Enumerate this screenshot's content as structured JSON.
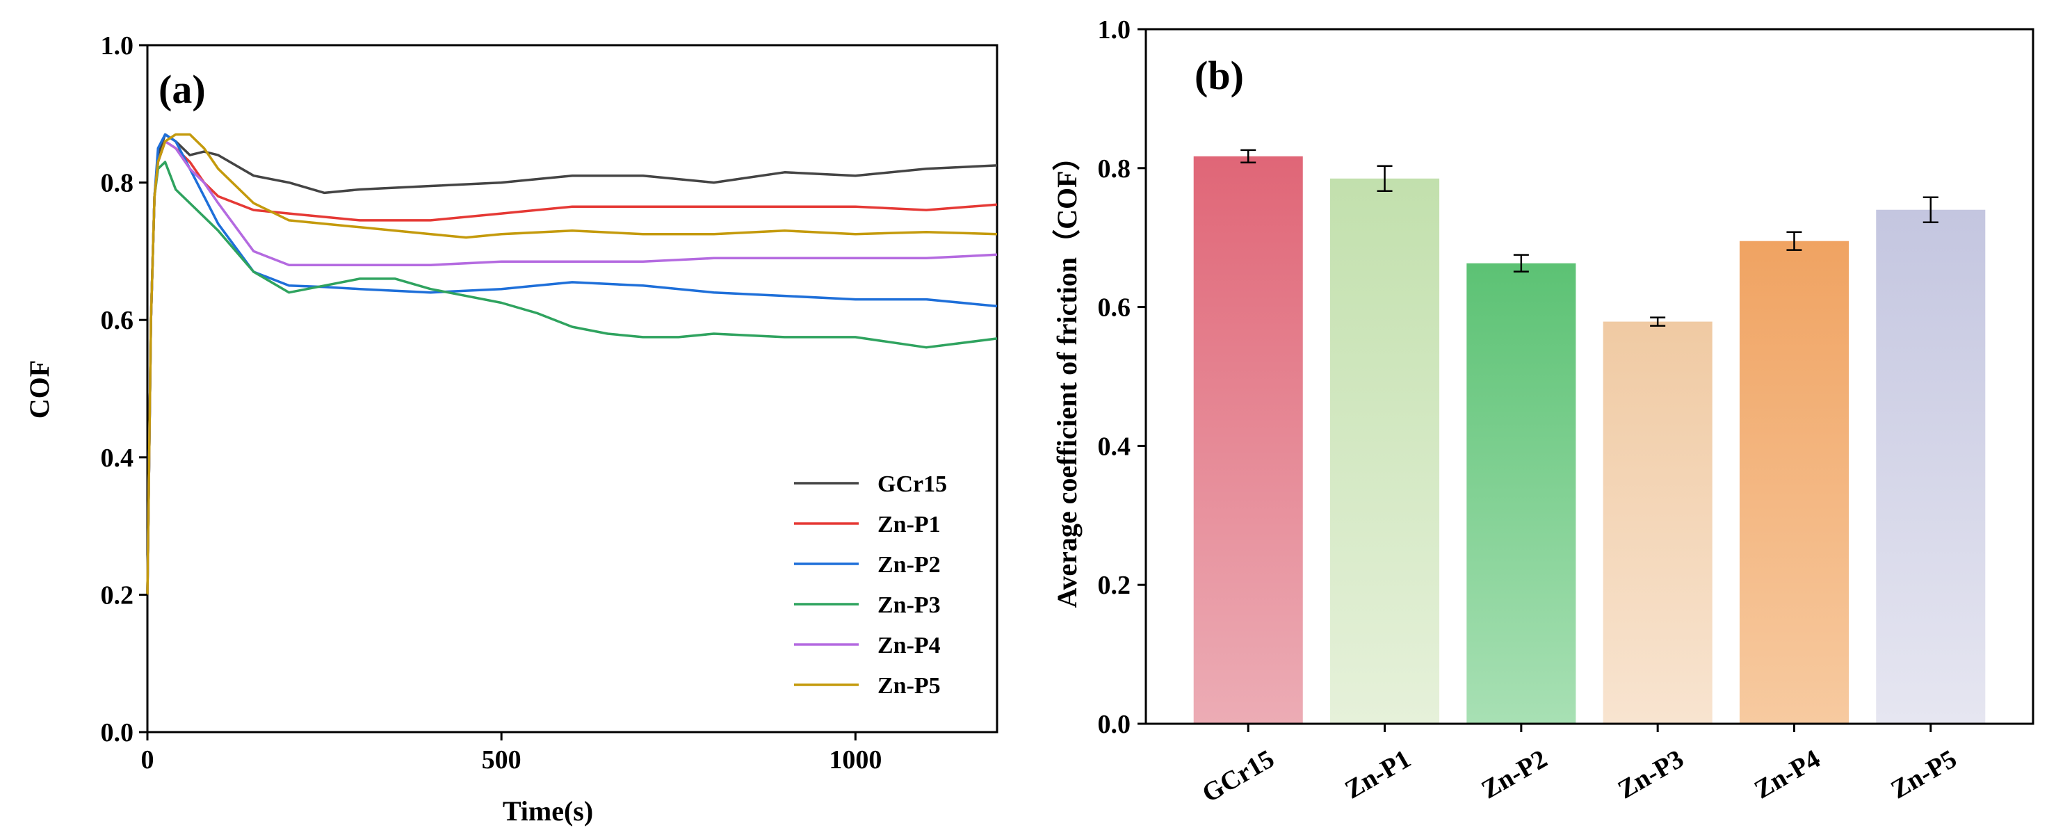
{
  "chart_data": [
    {
      "type": "line",
      "panel_label": "(a)",
      "xlabel": "Time(s)",
      "ylabel": "COF",
      "xlim": [
        0,
        1200
      ],
      "ylim": [
        0,
        1.0
      ],
      "xticks": [
        0,
        500,
        1000
      ],
      "xtick_labels": [
        "0",
        "500",
        "1000"
      ],
      "yticks": [
        0,
        0.2,
        0.4,
        0.6,
        0.8,
        1.0
      ],
      "ytick_labels": [
        "0.0",
        "0.2",
        "0.4",
        "0.6",
        "0.8",
        "1.0"
      ],
      "legend_position": "bottom-right",
      "series": [
        {
          "name": "GCr15",
          "color": "#444444",
          "x": [
            0,
            5,
            10,
            15,
            25,
            40,
            60,
            80,
            100,
            150,
            200,
            250,
            300,
            400,
            500,
            600,
            700,
            800,
            900,
            1000,
            1100,
            1200
          ],
          "y": [
            0.2,
            0.6,
            0.78,
            0.84,
            0.87,
            0.86,
            0.84,
            0.845,
            0.84,
            0.81,
            0.8,
            0.785,
            0.79,
            0.795,
            0.8,
            0.81,
            0.81,
            0.8,
            0.815,
            0.81,
            0.82,
            0.825
          ]
        },
        {
          "name": "Zn-P1",
          "color": "#e53935",
          "x": [
            0,
            5,
            10,
            15,
            25,
            40,
            60,
            80,
            100,
            150,
            200,
            250,
            300,
            400,
            500,
            600,
            700,
            800,
            900,
            1000,
            1100,
            1200
          ],
          "y": [
            0.2,
            0.6,
            0.78,
            0.83,
            0.86,
            0.85,
            0.83,
            0.8,
            0.78,
            0.76,
            0.755,
            0.75,
            0.745,
            0.745,
            0.755,
            0.765,
            0.765,
            0.765,
            0.765,
            0.765,
            0.76,
            0.768
          ]
        },
        {
          "name": "Zn-P2",
          "color": "#1e6fd9",
          "x": [
            0,
            5,
            10,
            15,
            25,
            40,
            60,
            80,
            100,
            150,
            200,
            250,
            300,
            400,
            500,
            600,
            700,
            800,
            900,
            1000,
            1100,
            1200
          ],
          "y": [
            0.2,
            0.6,
            0.78,
            0.85,
            0.87,
            0.86,
            0.82,
            0.78,
            0.74,
            0.67,
            0.65,
            0.648,
            0.645,
            0.64,
            0.645,
            0.655,
            0.65,
            0.64,
            0.635,
            0.63,
            0.63,
            0.62
          ]
        },
        {
          "name": "Zn-P3",
          "color": "#2fa35f",
          "x": [
            0,
            5,
            10,
            15,
            25,
            40,
            60,
            80,
            100,
            150,
            200,
            250,
            300,
            350,
            400,
            500,
            550,
            600,
            650,
            700,
            750,
            800,
            900,
            1000,
            1100,
            1200
          ],
          "y": [
            0.2,
            0.6,
            0.78,
            0.82,
            0.83,
            0.79,
            0.77,
            0.75,
            0.73,
            0.67,
            0.64,
            0.65,
            0.66,
            0.66,
            0.645,
            0.625,
            0.61,
            0.59,
            0.58,
            0.575,
            0.575,
            0.58,
            0.575,
            0.575,
            0.56,
            0.573
          ]
        },
        {
          "name": "Zn-P4",
          "color": "#b46ae0",
          "x": [
            0,
            5,
            10,
            15,
            25,
            40,
            60,
            80,
            100,
            150,
            200,
            250,
            300,
            400,
            500,
            600,
            700,
            800,
            900,
            1000,
            1100,
            1200
          ],
          "y": [
            0.2,
            0.6,
            0.78,
            0.83,
            0.86,
            0.85,
            0.82,
            0.8,
            0.77,
            0.7,
            0.68,
            0.68,
            0.68,
            0.68,
            0.685,
            0.685,
            0.685,
            0.69,
            0.69,
            0.69,
            0.69,
            0.695
          ]
        },
        {
          "name": "Zn-P5",
          "color": "#c49a0c",
          "x": [
            0,
            5,
            10,
            15,
            25,
            40,
            60,
            80,
            100,
            150,
            200,
            250,
            300,
            400,
            450,
            500,
            600,
            700,
            800,
            900,
            1000,
            1100,
            1200
          ],
          "y": [
            0.2,
            0.6,
            0.78,
            0.83,
            0.86,
            0.87,
            0.87,
            0.85,
            0.82,
            0.77,
            0.745,
            0.74,
            0.735,
            0.725,
            0.72,
            0.725,
            0.73,
            0.725,
            0.725,
            0.73,
            0.725,
            0.728,
            0.725
          ]
        }
      ]
    },
    {
      "type": "bar",
      "panel_label": "(b)",
      "xlabel": "",
      "ylabel": "Average coefficient of friction（COF）",
      "ylim": [
        0,
        1.0
      ],
      "yticks": [
        0,
        0.2,
        0.4,
        0.6,
        0.8,
        1.0
      ],
      "ytick_labels": [
        "0.0",
        "0.2",
        "0.4",
        "0.6",
        "0.8",
        "1.0"
      ],
      "categories": [
        "GCr15",
        "Zn-P1",
        "Zn-P2",
        "Zn-P3",
        "Zn-P4",
        "Zn-P5"
      ],
      "values": [
        0.817,
        0.785,
        0.663,
        0.579,
        0.695,
        0.74
      ],
      "errors": [
        0.009,
        0.018,
        0.012,
        0.006,
        0.013,
        0.018
      ],
      "colors_top": [
        "#e06677",
        "#c2e0ad",
        "#5cc274",
        "#f0caa3",
        "#f0a362",
        "#c4c6e0"
      ],
      "colors_bottom": [
        "#ecacb5",
        "#e6f1da",
        "#a8e0b4",
        "#f8e4d0",
        "#f7caa0",
        "#e6e6f1"
      ]
    }
  ]
}
